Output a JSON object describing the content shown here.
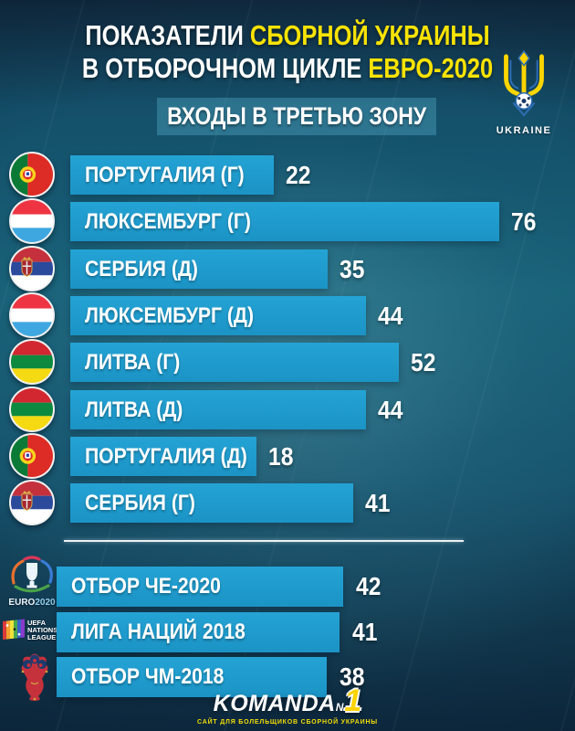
{
  "header": {
    "title_line1_white": "ПОКАЗАТЕЛИ ",
    "title_line1_yellow": "СБОРНОЙ УКРАИНЫ",
    "title_line2_white": "В ОТБОРОЧНОМ ЦИКЛЕ ",
    "title_line2_yellow": "ЕВРО-2020",
    "subtitle": "ВХОДЫ В ТРЕТЬЮ ЗОНУ",
    "crest_label": "UKRAINE"
  },
  "chart_data": {
    "type": "bar",
    "orientation": "horizontal",
    "title": "ПОКАЗАТЕЛИ СБОРНОЙ УКРАИНЫ В ОТБОРОЧНОМ ЦИКЛЕ ЕВРО-2020 — ВХОДЫ В ТРЕТЬЮ ЗОНУ",
    "xlim": [
      0,
      80
    ],
    "matches": [
      {
        "label": "ПОРТУГАЛИЯ (Г)",
        "value": 22,
        "flag": "portugal-flag-icon"
      },
      {
        "label": "ЛЮКСЕМБУРГ (Г)",
        "value": 76,
        "flag": "luxembourg-flag-icon"
      },
      {
        "label": "СЕРБИЯ (Д)",
        "value": 35,
        "flag": "serbia-flag-icon"
      },
      {
        "label": "ЛЮКСЕМБУРГ (Д)",
        "value": 44,
        "flag": "luxembourg-flag-icon"
      },
      {
        "label": "ЛИТВА (Г)",
        "value": 52,
        "flag": "lithuania-flag-icon"
      },
      {
        "label": "ЛИТВА (Д)",
        "value": 44,
        "flag": "lithuania-flag-icon"
      },
      {
        "label": "ПОРТУГАЛИЯ (Д)",
        "value": 18,
        "flag": "portugal-flag-icon"
      },
      {
        "label": "СЕРБИЯ (Г)",
        "value": 41,
        "flag": "serbia-flag-icon"
      }
    ],
    "tournaments": [
      {
        "label": "ОТБОР ЧЕ-2020",
        "value": 42,
        "icon": "euro2020-logo-icon"
      },
      {
        "label": "ЛИГА НАЦИЙ 2018",
        "value": 41,
        "icon": "nations-league-logo-icon"
      },
      {
        "label": "ОТБОР ЧМ-2018",
        "value": 38,
        "icon": "worldcup2018-logo-icon"
      }
    ]
  },
  "logos": {
    "euro2020_text_white": "EURO",
    "euro2020_text_cyan": "2020",
    "nations_league_lines": [
      "UEFA",
      "NATIONS",
      "LEAGUE"
    ]
  },
  "footer": {
    "brand": "KOMANDA",
    "brand_n": "N",
    "brand_one": "1",
    "tagline": "САЙТ ДЛЯ БОЛЕЛЬЩИКОВ СБОРНОЙ УКРАИНЫ"
  },
  "colors": {
    "bar_blue": "#1e9bcd",
    "accent_yellow": "#f9e303",
    "background_teal": "#155a6e"
  }
}
